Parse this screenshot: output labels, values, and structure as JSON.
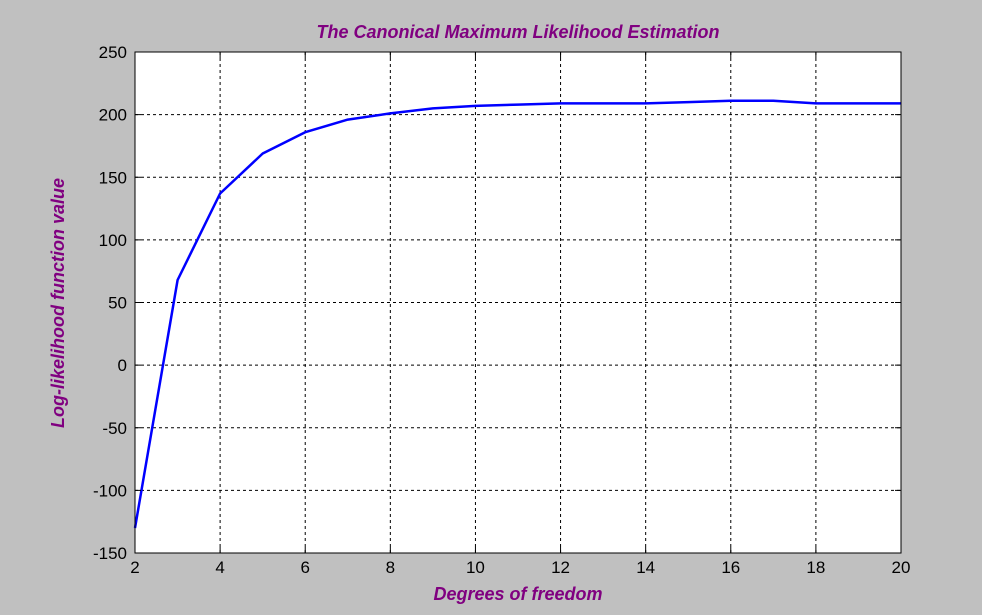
{
  "colors": {
    "background": "#c0c0c0",
    "plot_area": "#ffffff",
    "label_color": "#800080",
    "line_color": "#0000ff",
    "grid_color": "#000000"
  },
  "chart_data": {
    "type": "line",
    "title": "The Canonical Maximum Likelihood Estimation",
    "xlabel": "Degrees of freedom",
    "ylabel": "Log-likelihood function value",
    "xlim": [
      2,
      20
    ],
    "ylim": [
      -150,
      250
    ],
    "grid": true,
    "grid_style": "dashed",
    "x_ticks": [
      2,
      4,
      6,
      8,
      10,
      12,
      14,
      16,
      18,
      20
    ],
    "x_tick_labels": [
      "2",
      "4",
      "6",
      "8",
      "10",
      "12",
      "14",
      "16",
      "18",
      "20"
    ],
    "y_ticks": [
      -150,
      -100,
      -50,
      0,
      50,
      100,
      150,
      200,
      250
    ],
    "y_tick_labels": [
      "-150",
      "-100",
      "-50",
      "0",
      "50",
      "100",
      "150",
      "200",
      "250"
    ],
    "series": [
      {
        "x": [
          2,
          3,
          4,
          5,
          6,
          7,
          8,
          9,
          10,
          11,
          12,
          13,
          14,
          15,
          16,
          17,
          18,
          19,
          20
        ],
        "y": [
          -130,
          68,
          137,
          169,
          186,
          196,
          201,
          205,
          207,
          208,
          209,
          209,
          209,
          210,
          211,
          211,
          209,
          209,
          209
        ],
        "color": "#0000ff"
      }
    ]
  }
}
